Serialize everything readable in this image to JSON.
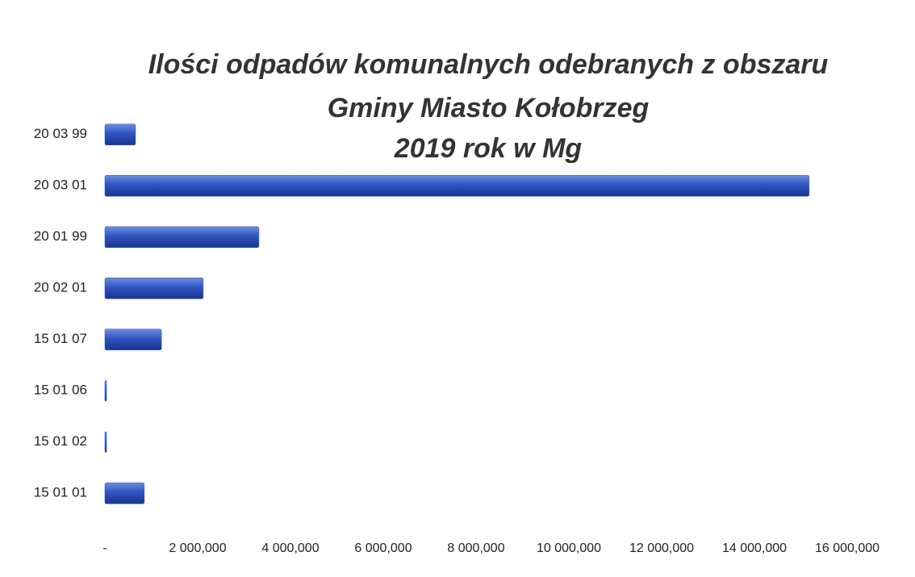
{
  "chart_data": {
    "type": "bar",
    "orientation": "horizontal",
    "title": [
      "Ilości odpadów komunalnych odebranych z obszaru",
      "Gminy Miasto Kołobrzeg",
      "2019 rok w Mg"
    ],
    "categories": [
      "20 03 99",
      "20 03 01",
      "20 01 99",
      "20 02 01",
      "15 01 07",
      "15 01 06",
      "15 01 02",
      "15 01 01"
    ],
    "values": [
      660000,
      15180000,
      3320000,
      2120000,
      1220000,
      30000,
      30000,
      850000
    ],
    "color": "#2f55c0",
    "xlim": [
      0,
      16000000
    ],
    "xticks": [
      {
        "value": 0,
        "label": "-"
      },
      {
        "value": 2000000,
        "label": "2 000,000"
      },
      {
        "value": 4000000,
        "label": "4 000,000"
      },
      {
        "value": 6000000,
        "label": "6 000,000"
      },
      {
        "value": 8000000,
        "label": "8 000,000"
      },
      {
        "value": 10000000,
        "label": "10 000,000"
      },
      {
        "value": 12000000,
        "label": "12 000,000"
      },
      {
        "value": 14000000,
        "label": "14 000,000"
      },
      {
        "value": 16000000,
        "label": "16 000,000"
      }
    ]
  }
}
